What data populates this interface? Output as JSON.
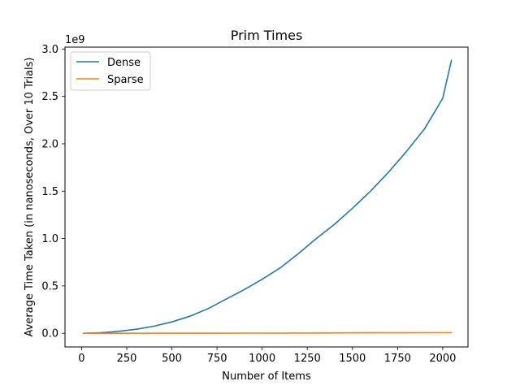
{
  "chart_data": {
    "type": "line",
    "title": "Prim Times",
    "xlabel": "Number of Items",
    "ylabel": "Average Time Taken (in nanoseconds, Over 10 Trials)",
    "y_offset_text": "1e9",
    "xlim": [
      -92,
      2140
    ],
    "ylim": [
      -0.144,
      3.02
    ],
    "x_ticks": [
      0,
      250,
      500,
      750,
      1000,
      1250,
      1500,
      1750,
      2000
    ],
    "x_tick_labels": [
      "0",
      "250",
      "500",
      "750",
      "1000",
      "1250",
      "1500",
      "1750",
      "2000"
    ],
    "y_ticks": [
      0.0,
      0.5,
      1.0,
      1.5,
      2.0,
      2.5,
      3.0
    ],
    "y_tick_labels": [
      "0.0",
      "0.5",
      "1.0",
      "1.5",
      "2.0",
      "2.5",
      "3.0"
    ],
    "grid": false,
    "legend_position": "top-left",
    "series": [
      {
        "name": "Dense",
        "color": "#1f77b4",
        "x": [
          10,
          100,
          200,
          300,
          400,
          500,
          600,
          700,
          800,
          900,
          1000,
          1100,
          1200,
          1300,
          1400,
          1500,
          1600,
          1700,
          1800,
          1900,
          2000,
          2048
        ],
        "y": [
          0.0,
          0.005,
          0.02,
          0.042,
          0.075,
          0.12,
          0.18,
          0.26,
          0.36,
          0.46,
          0.57,
          0.69,
          0.84,
          1.0,
          1.15,
          1.32,
          1.5,
          1.7,
          1.92,
          2.16,
          2.48,
          2.88
        ]
      },
      {
        "name": "Sparse",
        "color": "#ff7f0e",
        "x": [
          10,
          250,
          500,
          750,
          1000,
          1250,
          1500,
          1750,
          2000,
          2048
        ],
        "y": [
          0.0,
          0.0,
          0.001,
          0.001,
          0.002,
          0.003,
          0.004,
          0.005,
          0.006,
          0.007
        ]
      }
    ]
  }
}
